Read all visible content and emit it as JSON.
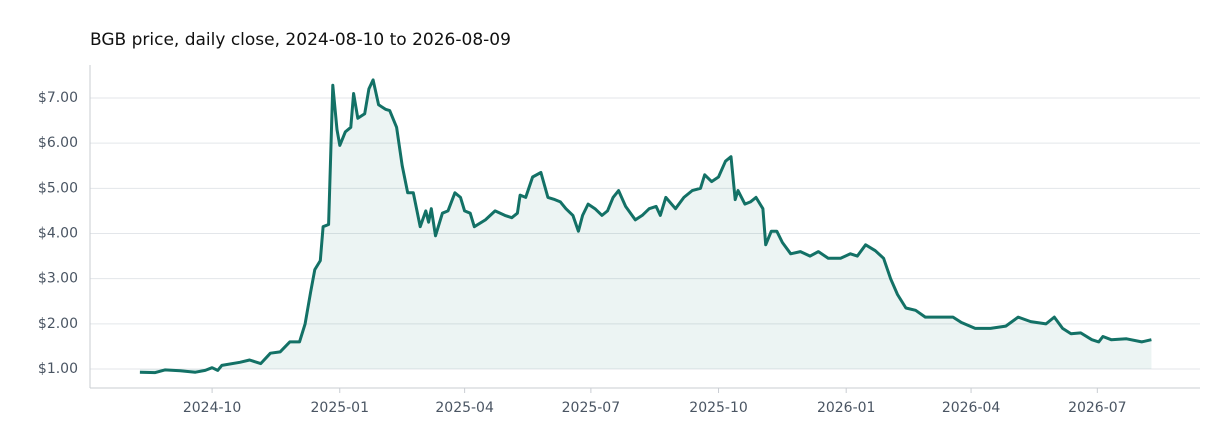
{
  "chart_data": {
    "type": "line",
    "title": "BGB price, daily close, 2024-08-10 to 2026-08-09",
    "x": [
      "2024-08-10",
      "2024-08-21",
      "2024-08-28",
      "2024-09-08",
      "2024-09-19",
      "2024-09-26",
      "2024-10-01",
      "2024-10-05",
      "2024-10-08",
      "2024-10-21",
      "2024-10-28",
      "2024-11-05",
      "2024-11-12",
      "2024-11-19",
      "2024-11-26",
      "2024-12-03",
      "2024-12-07",
      "2024-12-11",
      "2024-12-14",
      "2024-12-18",
      "2024-12-20",
      "2024-12-24",
      "2024-12-27",
      "2024-12-30",
      "2025-01-01",
      "2025-01-05",
      "2025-01-09",
      "2025-01-11",
      "2025-01-14",
      "2025-01-19",
      "2025-01-22",
      "2025-01-25",
      "2025-01-29",
      "2025-02-03",
      "2025-02-06",
      "2025-02-11",
      "2025-02-15",
      "2025-02-19",
      "2025-02-23",
      "2025-02-28",
      "2025-03-04",
      "2025-03-06",
      "2025-03-08",
      "2025-03-11",
      "2025-03-16",
      "2025-03-20",
      "2025-03-25",
      "2025-03-29",
      "2025-04-01",
      "2025-04-05",
      "2025-04-08",
      "2025-04-16",
      "2025-04-23",
      "2025-04-30",
      "2025-05-05",
      "2025-05-09",
      "2025-05-11",
      "2025-05-15",
      "2025-05-20",
      "2025-05-26",
      "2025-05-31",
      "2025-06-05",
      "2025-06-09",
      "2025-06-13",
      "2025-06-18",
      "2025-06-22",
      "2025-06-25",
      "2025-06-29",
      "2025-07-04",
      "2025-07-09",
      "2025-07-13",
      "2025-07-17",
      "2025-07-21",
      "2025-07-26",
      "2025-08-02",
      "2025-08-07",
      "2025-08-12",
      "2025-08-17",
      "2025-08-20",
      "2025-08-24",
      "2025-08-31",
      "2025-09-06",
      "2025-09-12",
      "2025-09-18",
      "2025-09-21",
      "2025-09-26",
      "2025-10-01",
      "2025-10-06",
      "2025-10-10",
      "2025-10-13",
      "2025-10-15",
      "2025-10-20",
      "2025-10-24",
      "2025-10-28",
      "2025-11-02",
      "2025-11-04",
      "2025-11-08",
      "2025-11-12",
      "2025-11-16",
      "2025-11-22",
      "2025-11-29",
      "2025-12-06",
      "2025-12-12",
      "2025-12-19",
      "2025-12-28",
      "2026-01-04",
      "2026-01-09",
      "2026-01-15",
      "2026-01-22",
      "2026-01-28",
      "2026-02-02",
      "2026-02-07",
      "2026-02-13",
      "2026-02-20",
      "2026-02-27",
      "2026-03-10",
      "2026-03-19",
      "2026-03-25",
      "2026-04-04",
      "2026-04-15",
      "2026-04-26",
      "2026-05-05",
      "2026-05-14",
      "2026-05-25",
      "2026-05-31",
      "2026-06-06",
      "2026-06-12",
      "2026-06-19",
      "2026-06-27",
      "2026-07-02",
      "2026-07-05",
      "2026-07-11",
      "2026-07-22",
      "2026-08-02",
      "2026-08-09"
    ],
    "series": [
      {
        "name": "BGB",
        "color": "#137166",
        "values": [
          0.93,
          0.92,
          0.98,
          0.96,
          0.93,
          0.97,
          1.03,
          0.97,
          1.08,
          1.15,
          1.2,
          1.12,
          1.35,
          1.38,
          1.6,
          1.6,
          2.0,
          2.7,
          3.2,
          3.4,
          4.15,
          4.2,
          7.28,
          6.3,
          5.95,
          6.25,
          6.35,
          7.1,
          6.55,
          6.65,
          7.2,
          7.4,
          6.85,
          6.75,
          6.72,
          6.35,
          5.5,
          4.9,
          4.9,
          4.15,
          4.5,
          4.25,
          4.55,
          3.95,
          4.45,
          4.5,
          4.9,
          4.8,
          4.5,
          4.45,
          4.15,
          4.3,
          4.5,
          4.4,
          4.35,
          4.45,
          4.85,
          4.8,
          5.25,
          5.35,
          4.8,
          4.75,
          4.7,
          4.55,
          4.4,
          4.05,
          4.4,
          4.65,
          4.55,
          4.4,
          4.5,
          4.8,
          4.95,
          4.6,
          4.3,
          4.4,
          4.55,
          4.6,
          4.4,
          4.8,
          4.55,
          4.8,
          4.95,
          5.0,
          5.3,
          5.15,
          5.25,
          5.6,
          5.7,
          4.75,
          4.95,
          4.65,
          4.7,
          4.8,
          4.55,
          3.75,
          4.05,
          4.05,
          3.8,
          3.55,
          3.6,
          3.5,
          3.6,
          3.45,
          3.45,
          3.55,
          3.5,
          3.75,
          3.62,
          3.45,
          3.0,
          2.65,
          2.35,
          2.3,
          2.15,
          2.15,
          2.15,
          2.03,
          1.9,
          1.9,
          1.95,
          2.15,
          2.05,
          2.0,
          2.15,
          1.9,
          1.78,
          1.8,
          1.65,
          1.6,
          1.72,
          1.65,
          1.67,
          1.6,
          1.65
        ]
      }
    ],
    "xlim": [
      "2024-07-05",
      "2026-09-13"
    ],
    "xticks": [
      {
        "value": "2024-10-01",
        "label": "2024-10"
      },
      {
        "value": "2025-01-01",
        "label": "2025-01"
      },
      {
        "value": "2025-04-01",
        "label": "2025-04"
      },
      {
        "value": "2025-07-01",
        "label": "2025-07"
      },
      {
        "value": "2025-10-01",
        "label": "2025-10"
      },
      {
        "value": "2026-01-01",
        "label": "2026-01"
      },
      {
        "value": "2026-04-01",
        "label": "2026-04"
      },
      {
        "value": "2026-07-01",
        "label": "2026-07"
      }
    ],
    "ylim": [
      0.58,
      7.73
    ],
    "yticks": [
      {
        "value": 1,
        "label": "$1.00"
      },
      {
        "value": 2,
        "label": "$2.00"
      },
      {
        "value": 3,
        "label": "$3.00"
      },
      {
        "value": 4,
        "label": "$4.00"
      },
      {
        "value": 5,
        "label": "$5.00"
      },
      {
        "value": 6,
        "label": "$6.00"
      },
      {
        "value": 7,
        "label": "$7.00"
      }
    ],
    "grid": true
  }
}
